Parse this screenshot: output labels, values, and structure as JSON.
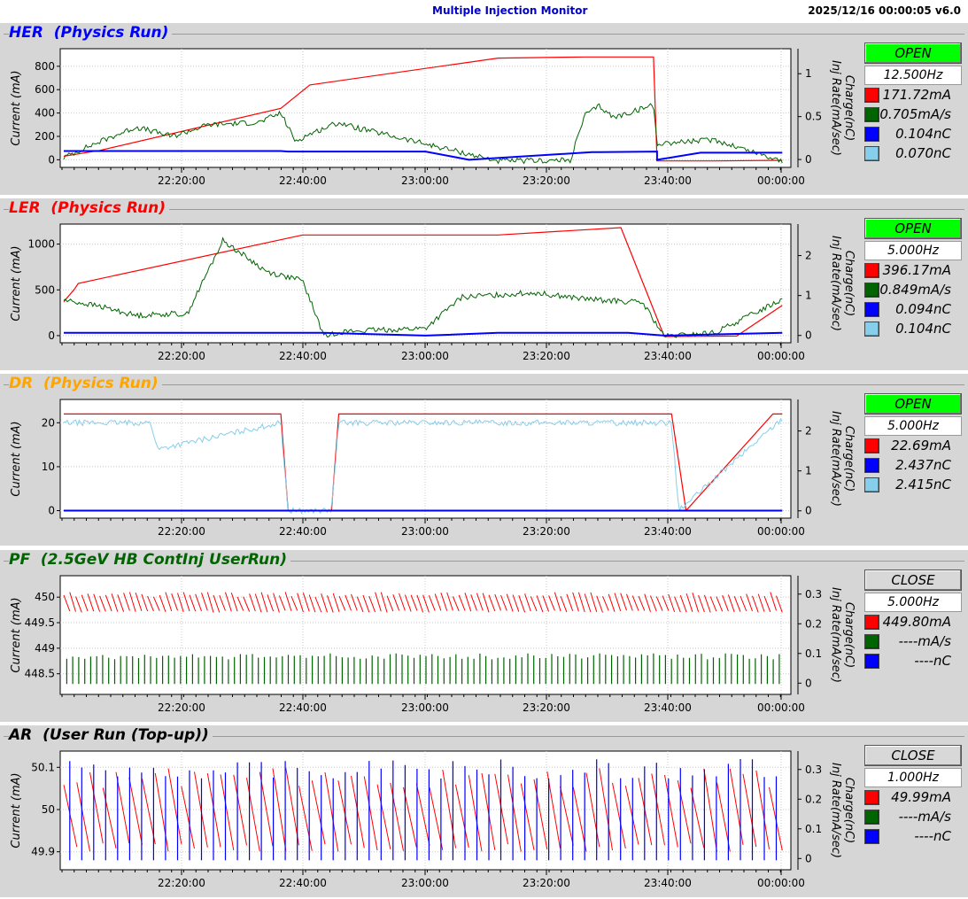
{
  "header": {
    "title": "Multiple Injection Monitor",
    "timestamp": "2025/12/16 00:00:05   v6.0"
  },
  "colors": {
    "red": "#ff0000",
    "green": "#006400",
    "blue": "#0000ff",
    "lightblue": "#87ceeb",
    "open": "#00ff00",
    "close": "#d8d8d8"
  },
  "panels": [
    {
      "name": "her",
      "label": "HER",
      "mode": "(Physics Run)",
      "title_color": "#0000ff",
      "status": "OPEN",
      "status_color": "#00ff00",
      "freq": "12.500Hz",
      "values": [
        {
          "text": "171.72mA",
          "color": "#ff0000"
        },
        {
          "text": "0.705mA/s",
          "color": "#006400"
        },
        {
          "text": "0.104nC",
          "color": "#0000ff"
        },
        {
          "text": "0.070nC",
          "color": "#87ceeb"
        }
      ]
    },
    {
      "name": "ler",
      "label": "LER",
      "mode": "(Physics Run)",
      "title_color": "#ff0000",
      "status": "OPEN",
      "status_color": "#00ff00",
      "freq": "5.000Hz",
      "values": [
        {
          "text": "396.17mA",
          "color": "#ff0000"
        },
        {
          "text": "0.849mA/s",
          "color": "#006400"
        },
        {
          "text": "0.094nC",
          "color": "#0000ff"
        },
        {
          "text": "0.104nC",
          "color": "#87ceeb"
        }
      ]
    },
    {
      "name": "dr",
      "label": "DR",
      "mode": "(Physics Run)",
      "title_color": "#ffa500",
      "status": "OPEN",
      "status_color": "#00ff00",
      "freq": "5.000Hz",
      "values": [
        {
          "text": "22.69mA",
          "color": "#ff0000"
        },
        {
          "text": "2.437nC",
          "color": "#0000ff"
        },
        {
          "text": "2.415nC",
          "color": "#87ceeb"
        }
      ]
    },
    {
      "name": "pf",
      "label": "PF",
      "mode": "(2.5GeV HB ContInj UserRun)",
      "title_color": "#006400",
      "status": "CLOSE",
      "status_color": "#d8d8d8",
      "freq": "5.000Hz",
      "values": [
        {
          "text": "449.80mA",
          "color": "#ff0000"
        },
        {
          "text": "----mA/s",
          "color": "#006400"
        },
        {
          "text": "----nC",
          "color": "#0000ff"
        }
      ]
    },
    {
      "name": "ar",
      "label": "AR",
      "mode": "(User Run (Top-up))",
      "title_color": "#000000",
      "status": "CLOSE",
      "status_color": "#d8d8d8",
      "freq": "1.000Hz",
      "values": [
        {
          "text": "49.99mA",
          "color": "#ff0000"
        },
        {
          "text": "----mA/s",
          "color": "#006400"
        },
        {
          "text": "----nC",
          "color": "#0000ff"
        }
      ]
    }
  ],
  "chart_data": [
    {
      "type": "line",
      "panel": "HER",
      "x_ticks": [
        "22:20:00",
        "22:40:00",
        "23:00:00",
        "23:20:00",
        "23:40:00",
        "00:00:00"
      ],
      "ylabel": "Current (mA)",
      "y2label": "Charge(nC)\nInj Rate(mA/sec)",
      "yticks": [
        "0",
        "200",
        "400",
        "600",
        "800"
      ],
      "ylim": [
        -20,
        920
      ],
      "y2ticks": [
        "0",
        "0.5",
        "1"
      ],
      "y2lim": [
        -0.03,
        1.25
      ],
      "series": [
        {
          "color": "#ff0000",
          "kind": "line",
          "x": [
            0,
            0.02,
            0.05,
            0.3,
            0.34,
            0.6,
            0.72,
            0.815,
            0.82,
            0.9,
            0.993
          ],
          "y": [
            30,
            50,
            80,
            440,
            640,
            870,
            880,
            880,
            -10,
            -10,
            -5
          ]
        },
        {
          "color": "#006400",
          "kind": "noisy",
          "x": [
            0,
            0.04,
            0.1,
            0.15,
            0.2,
            0.27,
            0.3,
            0.32,
            0.34,
            0.38,
            0.4,
            0.6,
            0.62,
            0.7,
            0.72,
            0.74,
            0.76,
            0.815,
            0.82,
            0.9,
            0.993
          ],
          "y": [
            20,
            130,
            280,
            200,
            300,
            320,
            400,
            160,
            220,
            320,
            280,
            -10,
            -10,
            -5,
            380,
            460,
            360,
            470,
            140,
            170,
            -10
          ]
        },
        {
          "color": "#0000ff",
          "kind": "flat",
          "x": [
            0,
            0.3,
            0.31,
            0.5,
            0.56,
            0.73,
            0.74,
            0.82,
            0.82,
            0.88,
            0.993
          ],
          "y": [
            75,
            75,
            70,
            70,
            0,
            65,
            65,
            70,
            0,
            60,
            60
          ]
        }
      ]
    },
    {
      "type": "line",
      "panel": "LER",
      "x_ticks": [
        "22:20:00",
        "22:40:00",
        "23:00:00",
        "23:20:00",
        "23:40:00",
        "00:00:00"
      ],
      "ylabel": "Current (mA)",
      "y2label": "Charge(nC)\nInj Rate(mA/sec)",
      "yticks": [
        "0",
        "500",
        "1000"
      ],
      "ylim": [
        -20,
        1180
      ],
      "y2ticks": [
        "0",
        "1",
        "2"
      ],
      "y2lim": [
        -0.05,
        2.7
      ],
      "series": [
        {
          "color": "#ff0000",
          "kind": "line",
          "x": [
            0,
            0.015,
            0.02,
            0.33,
            0.55,
            0.6,
            0.77,
            0.83,
            0.93,
            0.993
          ],
          "y": [
            370,
            510,
            570,
            1100,
            1100,
            1100,
            1180,
            -10,
            -5,
            330
          ]
        },
        {
          "color": "#006400",
          "kind": "noisy",
          "x": [
            0,
            0.05,
            0.1,
            0.15,
            0.17,
            0.22,
            0.28,
            0.33,
            0.36,
            0.38,
            0.43,
            0.5,
            0.55,
            0.65,
            0.72,
            0.8,
            0.83,
            0.9,
            0.993
          ],
          "y": [
            390,
            320,
            220,
            240,
            230,
            1040,
            700,
            600,
            -10,
            40,
            60,
            80,
            420,
            470,
            400,
            360,
            -10,
            30,
            400
          ]
        },
        {
          "color": "#0000ff",
          "kind": "flat",
          "x": [
            0,
            0.12,
            0.36,
            0.5,
            0.6,
            0.78,
            0.83,
            0.993
          ],
          "y": [
            30,
            30,
            30,
            0,
            30,
            30,
            0,
            30
          ]
        }
      ]
    },
    {
      "type": "line",
      "panel": "DR",
      "x_ticks": [
        "22:20:00",
        "22:40:00",
        "23:00:00",
        "23:20:00",
        "23:40:00",
        "00:00:00"
      ],
      "ylabel": "Current (mA)",
      "y2label": "Charge(nC)\nInj Rate(mA/sec)",
      "yticks": [
        "0",
        "10",
        "20"
      ],
      "ylim": [
        -0.5,
        24.5
      ],
      "y2ticks": [
        "0",
        "1",
        "2"
      ],
      "y2lim": [
        -0.05,
        2.7
      ],
      "series": [
        {
          "color": "#ff0000",
          "kind": "line",
          "x": [
            0,
            0.12,
            0.15,
            0.3,
            0.31,
            0.37,
            0.38,
            0.84,
            0.86,
            0.98,
            0.993
          ],
          "y": [
            22,
            22,
            22,
            22,
            0,
            0,
            22,
            22,
            0,
            22,
            22
          ]
        },
        {
          "color": "#87ceeb",
          "kind": "noisy",
          "x": [
            0,
            0.12,
            0.13,
            0.3,
            0.31,
            0.37,
            0.38,
            0.84,
            0.85,
            0.993
          ],
          "y": [
            20,
            20,
            14,
            20,
            0,
            0,
            20,
            20,
            0,
            21
          ]
        },
        {
          "color": "#0000ff",
          "kind": "flat",
          "x": [
            0,
            0.12,
            0.15,
            0.3,
            0.37,
            0.55,
            0.84,
            0.993
          ],
          "y": [
            0,
            0,
            0,
            0,
            0,
            0,
            0,
            0
          ]
        }
      ]
    },
    {
      "type": "line",
      "panel": "PF",
      "x_ticks": [
        "22:20:00",
        "22:40:00",
        "23:00:00",
        "23:20:00",
        "23:40:00",
        "00:00:00"
      ],
      "ylabel": "Current (mA)",
      "y2label": "Charge(nC)\nInj Rate(mA/sec)",
      "yticks": [
        "448.5",
        "449",
        "449.5",
        "450"
      ],
      "ylim": [
        448.2,
        450.35
      ],
      "y2ticks": [
        "0",
        "0.1",
        "0.2",
        "0.3"
      ],
      "y2lim": [
        -0.02,
        0.35
      ],
      "series": [
        {
          "color": "#ff0000",
          "kind": "sawtooth",
          "x": [
            0,
            0.993
          ],
          "y": [
            449.7,
            450.1
          ]
        },
        {
          "color": "#006400",
          "kind": "spikes",
          "x": [
            0,
            0.993
          ],
          "y": [
            448.3,
            448.9
          ]
        }
      ]
    },
    {
      "type": "line",
      "panel": "AR",
      "x_ticks": [
        "22:20:00",
        "22:40:00",
        "23:00:00",
        "23:20:00",
        "23:40:00",
        "00:00:00"
      ],
      "ylabel": "Current (mA)",
      "y2label": "Charge(nC)\nInj Rate(mA/sec)",
      "yticks": [
        "49.9",
        "50",
        "50.1"
      ],
      "ylim": [
        49.87,
        50.13
      ],
      "y2ticks": [
        "0",
        "0.1",
        "0.2",
        "0.3"
      ],
      "y2lim": [
        -0.02,
        0.35
      ],
      "series": [
        {
          "color": "#ff0000",
          "kind": "sawtooth",
          "x": [
            0,
            0.993
          ],
          "y": [
            49.9,
            50.1
          ]
        },
        {
          "color": "#0000ff",
          "kind": "spikes",
          "x": [
            0,
            0.993
          ],
          "y": [
            49.88,
            50.12
          ]
        }
      ]
    }
  ]
}
